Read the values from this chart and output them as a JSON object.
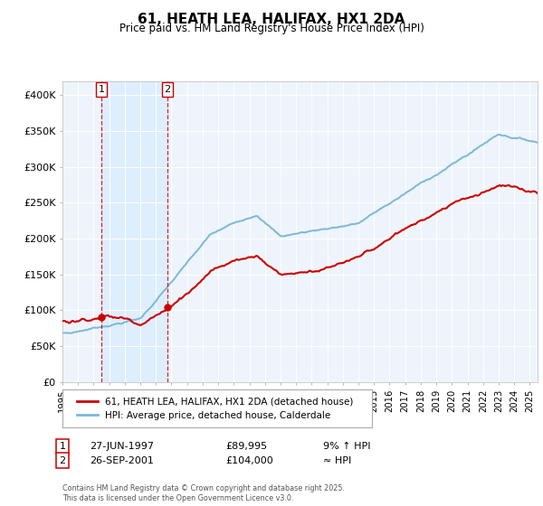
{
  "title": "61, HEATH LEA, HALIFAX, HX1 2DA",
  "subtitle": "Price paid vs. HM Land Registry's House Price Index (HPI)",
  "legend_line1": "61, HEATH LEA, HALIFAX, HX1 2DA (detached house)",
  "legend_line2": "HPI: Average price, detached house, Calderdale",
  "annotation_footer": "Contains HM Land Registry data © Crown copyright and database right 2025.\nThis data is licensed under the Open Government Licence v3.0.",
  "table_rows": [
    {
      "num": "1",
      "date": "27-JUN-1997",
      "price": "£89,995",
      "hpi": "9% ↑ HPI"
    },
    {
      "num": "2",
      "date": "26-SEP-2001",
      "price": "£104,000",
      "hpi": "≈ HPI"
    }
  ],
  "sale1_year": 1997.49,
  "sale1_price": 89995,
  "sale2_year": 2001.74,
  "sale2_price": 104000,
  "hpi_color": "#7ab8d9",
  "price_color": "#cc0000",
  "vline_color": "#cc0000",
  "shade_color": "#ddeeff",
  "bg_color": "#eef4fb",
  "ylim": [
    0,
    420000
  ],
  "xlim_start": 1995.0,
  "xlim_end": 2025.5
}
